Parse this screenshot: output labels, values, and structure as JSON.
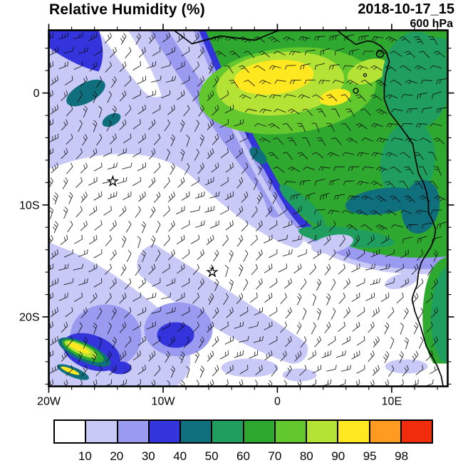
{
  "header": {
    "title": "Relative Humidity (%)",
    "timestamp": "2018-10-17_15",
    "level": "600 hPa"
  },
  "chart_data": {
    "type": "heatmap",
    "title": "Relative Humidity (%)",
    "valid_time": "2018-10-17_15",
    "pressure_level": "600 hPa",
    "units": "%",
    "projection": "lat-lon (south-east Atlantic / west-central Africa)",
    "lon_range": [
      -20,
      14.9
    ],
    "lat_range": [
      -26.2,
      5.6
    ],
    "x_ticks": [
      {
        "lon": -20,
        "label": "20W"
      },
      {
        "lon": -10,
        "label": "10W"
      },
      {
        "lon": 0,
        "label": "0"
      },
      {
        "lon": 10,
        "label": "10E"
      }
    ],
    "y_ticks": [
      {
        "lat": 0,
        "label": "0"
      },
      {
        "lat": -10,
        "label": "10S"
      },
      {
        "lat": -20,
        "label": "20S"
      }
    ],
    "colorbar": {
      "levels": [
        10,
        20,
        30,
        40,
        50,
        60,
        70,
        80,
        90,
        95,
        98
      ],
      "colors": [
        "#ffffff",
        "#c9c9f8",
        "#9a9af0",
        "#3434dd",
        "#0f6f7d",
        "#1f9e5f",
        "#2fa82f",
        "#63c72e",
        "#b4e335",
        "#ffe81f",
        "#ff9b21",
        "#ef2c0c"
      ]
    },
    "markers": [
      {
        "type": "star",
        "lon": -14.4,
        "lat": -7.9
      },
      {
        "type": "star",
        "lon": -5.7,
        "lat": -16.0
      }
    ],
    "wind_barbs": {
      "present": true,
      "style": "black wind barbs on regular grid over whole domain",
      "approx_spacing_deg": 1.3
    },
    "features": [
      {
        "region": "Gulf of Guinea and west-central Africa (north-east of moisture front)",
        "rh_percent": "60-95, yellow maxima 90-95 near 2N 4W-2E"
      },
      {
        "region": "diagonal moist-to-dry transition band from ~20W 5N to ~5W 10S then east to the Angolan coast",
        "rh_percent": "20-50"
      },
      {
        "region": "subtropical south-east Atlantic (south-west half of domain)",
        "rh_percent": "<10-30, mostly <10"
      },
      {
        "region": "isolated blue patch near 9W 18S",
        "rh_percent": "30-40"
      },
      {
        "region": "narrow streak near 19W 23S (bottom-left corner)",
        "rh_percent": "50-95"
      }
    ]
  }
}
